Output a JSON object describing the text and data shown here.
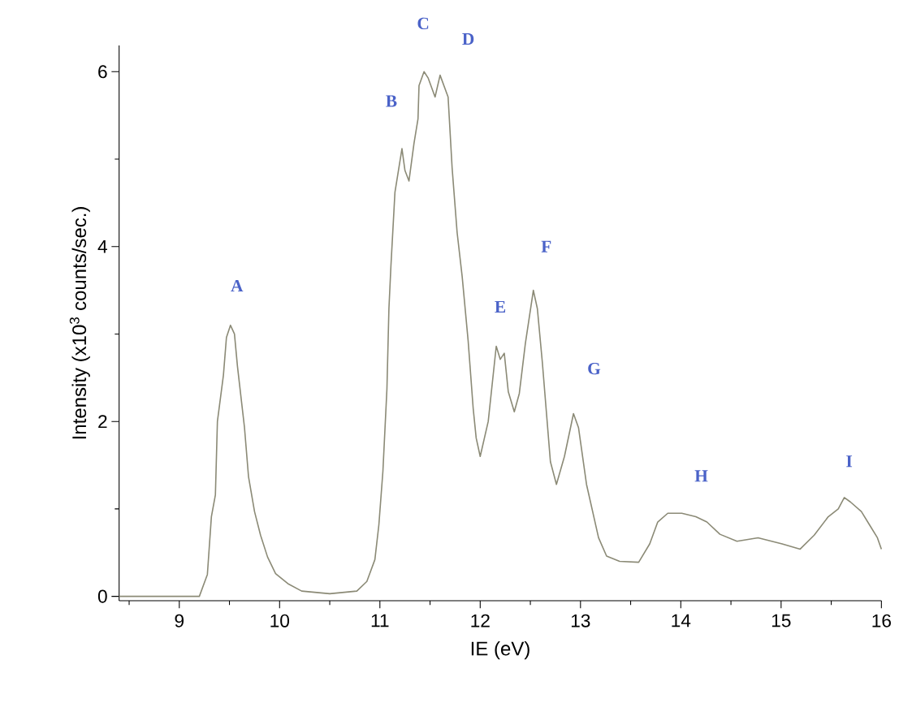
{
  "chart_data": {
    "type": "line",
    "xlabel": "IE (eV)",
    "ylabel": "Intensity (x10$^{3}$ counts/sec.)",
    "x": [
      8.4,
      9.1,
      9.2,
      9.28,
      9.32,
      9.36,
      9.38,
      9.44,
      9.47,
      9.51,
      9.55,
      9.58,
      9.65,
      9.69,
      9.75,
      9.81,
      9.88,
      9.96,
      10.09,
      10.22,
      10.5,
      10.77,
      10.87,
      10.95,
      10.99,
      11.03,
      11.07,
      11.09,
      11.11,
      11.15,
      11.22,
      11.25,
      11.29,
      11.34,
      11.38,
      11.39,
      11.44,
      11.48,
      11.55,
      11.6,
      11.68,
      11.72,
      11.77,
      11.82,
      11.88,
      11.93,
      11.96,
      12.0,
      12.08,
      12.16,
      12.2,
      12.24,
      12.28,
      12.34,
      12.39,
      12.45,
      12.53,
      12.57,
      12.62,
      12.7,
      12.76,
      12.84,
      12.93,
      12.98,
      13.06,
      13.18,
      13.26,
      13.39,
      13.58,
      13.69,
      13.77,
      13.87,
      14.01,
      14.15,
      14.26,
      14.39,
      14.56,
      14.77,
      15.01,
      15.19,
      15.33,
      15.47,
      15.57,
      15.63,
      15.69,
      15.8,
      15.88,
      15.96,
      16.0
    ],
    "series": [
      {
        "color": "#8b8a76",
        "values": [
          0,
          0,
          0,
          0.25,
          0.91,
          1.16,
          2.0,
          2.53,
          2.96,
          3.1,
          3.0,
          2.63,
          1.93,
          1.37,
          0.97,
          0.7,
          0.45,
          0.26,
          0.14,
          0.06,
          0.03,
          0.06,
          0.17,
          0.42,
          0.82,
          1.43,
          2.37,
          3.29,
          3.78,
          4.62,
          5.12,
          4.87,
          4.75,
          5.18,
          5.46,
          5.84,
          6.0,
          5.93,
          5.71,
          5.96,
          5.71,
          4.9,
          4.16,
          3.66,
          2.92,
          2.15,
          1.81,
          1.6,
          2.0,
          2.86,
          2.71,
          2.78,
          2.34,
          2.11,
          2.32,
          2.89,
          3.5,
          3.29,
          2.67,
          1.54,
          1.28,
          1.6,
          2.09,
          1.93,
          1.28,
          0.67,
          0.46,
          0.4,
          0.39,
          0.6,
          0.85,
          0.95,
          0.95,
          0.91,
          0.85,
          0.71,
          0.63,
          0.67,
          0.6,
          0.54,
          0.7,
          0.91,
          1.0,
          1.13,
          1.08,
          0.97,
          0.82,
          0.67,
          0.54
        ]
      }
    ],
    "xlim": [
      8.4,
      16
    ],
    "ylim": [
      -0.05,
      6.3
    ],
    "xticks": [
      {
        "value": 8.5,
        "label": null
      },
      9,
      {
        "value": 9.5,
        "label": null
      },
      10,
      {
        "value": 10.5,
        "label": null
      },
      11,
      {
        "value": 11.5,
        "label": null
      },
      12,
      {
        "value": 12.5,
        "label": null
      },
      13,
      {
        "value": 13.5,
        "label": null
      },
      14,
      {
        "value": 14.5,
        "label": null
      },
      15,
      {
        "value": 15.5,
        "label": null
      },
      16
    ],
    "yticks": [
      0,
      {
        "value": 1,
        "label": null
      },
      2,
      {
        "value": 3,
        "label": null
      },
      4,
      {
        "value": 5,
        "label": null
      },
      6
    ],
    "annotations": [
      {
        "text": "A",
        "x": 9.51,
        "y": 3.1
      },
      {
        "text": "B",
        "x": 11.22,
        "y": 5.12
      },
      {
        "text": "C",
        "x": 11.44,
        "y": 6.0
      },
      {
        "text": "D",
        "x": 11.6,
        "y": 5.96
      },
      {
        "text": "E",
        "x": 12.16,
        "y": 2.86
      },
      {
        "text": "F",
        "x": 12.53,
        "y": 3.5
      },
      {
        "text": "G",
        "x": 12.93,
        "y": 2.09
      },
      {
        "text": "H",
        "x": 14.01,
        "y": 0.95
      },
      {
        "text": "I",
        "x": 15.63,
        "y": 1.13
      }
    ],
    "grid": false,
    "marker": "none",
    "line_style": "solid"
  }
}
